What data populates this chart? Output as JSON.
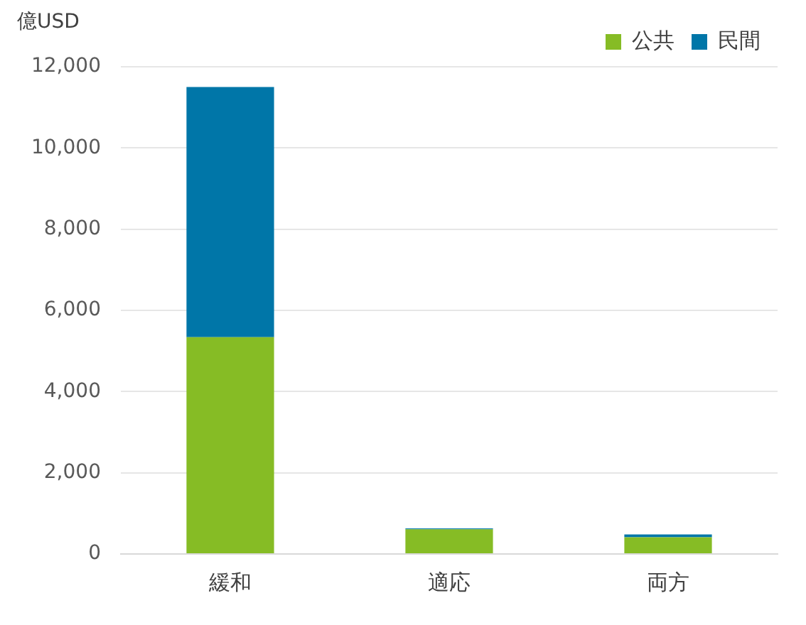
{
  "chart_data": {
    "type": "bar",
    "stacked": true,
    "ylabel": "億USD",
    "categories": [
      "緩和",
      "適応",
      "両方"
    ],
    "series": [
      {
        "name": "公共",
        "color": "#86bc25",
        "values": [
          5340,
          610,
          410
        ]
      },
      {
        "name": "民間",
        "color": "#0076a8",
        "values": [
          6160,
          20,
          70
        ]
      }
    ],
    "ylim": [
      0,
      12000
    ],
    "yticks": [
      {
        "value": 0,
        "label": "0"
      },
      {
        "value": 2000,
        "label": "2,000"
      },
      {
        "value": 4000,
        "label": "4,000"
      },
      {
        "value": 6000,
        "label": "6,000"
      },
      {
        "value": 8000,
        "label": "8,000"
      },
      {
        "value": 10000,
        "label": "10,000"
      },
      {
        "value": 12000,
        "label": "12,000"
      }
    ],
    "grid": "y",
    "legend": "top right"
  }
}
